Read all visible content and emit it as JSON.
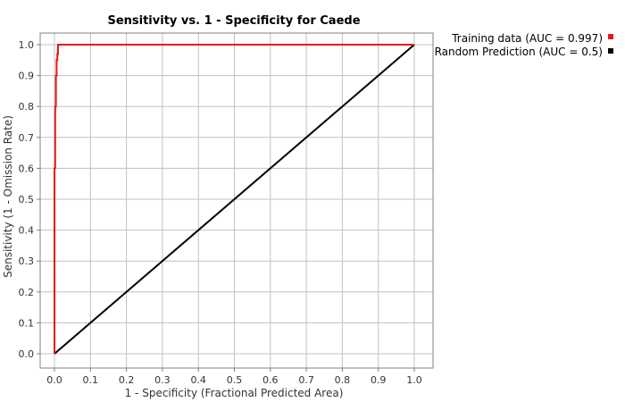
{
  "chart_data": {
    "type": "line",
    "title": "Sensitivity vs. 1 - Specificity for Caede",
    "xlabel": "1 - Specificity  (Fractional Predicted Area)",
    "ylabel": "Sensitivity  (1 - Omission Rate)",
    "xlim": [
      0,
      1
    ],
    "ylim": [
      0,
      1
    ],
    "x_ticks": [
      "0.0",
      "0.1",
      "0.2",
      "0.3",
      "0.4",
      "0.5",
      "0.6",
      "0.7",
      "0.8",
      "0.9",
      "1.0"
    ],
    "y_ticks": [
      "0.0",
      "0.1",
      "0.2",
      "0.3",
      "0.4",
      "0.5",
      "0.6",
      "0.7",
      "0.8",
      "0.9",
      "1.0"
    ],
    "grid": true,
    "legend_position": "top-right, outside plot",
    "series": [
      {
        "name": "Training data (AUC = 0.997)",
        "color": "#e8171b",
        "x": [
          0.0,
          0.0,
          0.002,
          0.002,
          0.004,
          0.004,
          0.006,
          0.006,
          0.008,
          0.008,
          0.01,
          0.01,
          1.0
        ],
        "y": [
          0.0,
          0.6,
          0.6,
          0.8,
          0.8,
          0.9,
          0.9,
          0.95,
          0.95,
          0.97,
          0.97,
          1.0,
          1.0
        ]
      },
      {
        "name": "Random Prediction (AUC = 0.5)",
        "color": "#000000",
        "x": [
          0.0,
          1.0
        ],
        "y": [
          0.0,
          1.0
        ]
      }
    ]
  }
}
